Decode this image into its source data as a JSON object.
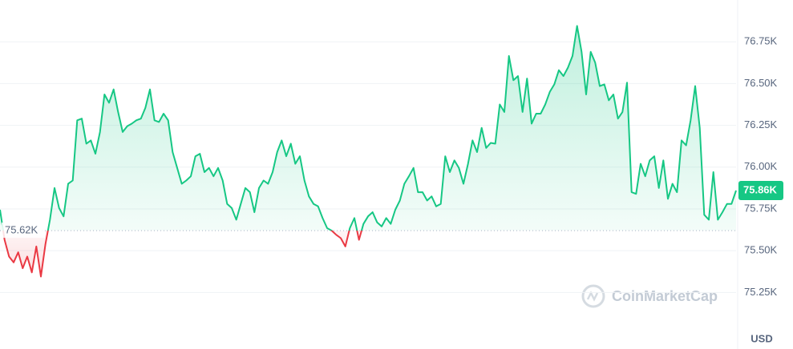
{
  "chart_data": {
    "type": "line",
    "values": [
      75745,
      75565,
      75465,
      75430,
      75490,
      75395,
      75465,
      75370,
      75525,
      75345,
      75540,
      75685,
      75875,
      75755,
      75705,
      75900,
      75920,
      76280,
      76290,
      76140,
      76160,
      76080,
      76210,
      76435,
      76385,
      76465,
      76330,
      76210,
      76245,
      76260,
      76280,
      76290,
      76355,
      76465,
      76280,
      76270,
      76320,
      76280,
      76090,
      75995,
      75900,
      75920,
      75945,
      76065,
      76080,
      75970,
      75995,
      75945,
      75995,
      75920,
      75780,
      75755,
      75685,
      75780,
      75875,
      75850,
      75730,
      75875,
      75920,
      75900,
      75970,
      76090,
      76160,
      76065,
      76140,
      76020,
      76065,
      75920,
      75825,
      75780,
      75765,
      75695,
      75635,
      75620,
      75595,
      75575,
      75525,
      75635,
      75695,
      75565,
      75660,
      75705,
      75730,
      75670,
      75645,
      75695,
      75660,
      75745,
      75800,
      75900,
      75945,
      75995,
      75850,
      75850,
      75800,
      75825,
      75765,
      75780,
      76065,
      75970,
      76040,
      75995,
      75900,
      76020,
      76160,
      76090,
      76235,
      76115,
      76145,
      76140,
      76375,
      76330,
      76665,
      76520,
      76545,
      76330,
      76530,
      76260,
      76320,
      76320,
      76375,
      76450,
      76495,
      76580,
      76545,
      76595,
      76665,
      76845,
      76690,
      76435,
      76690,
      76625,
      76485,
      76495,
      76400,
      76435,
      76290,
      76330,
      76505,
      75850,
      75840,
      76020,
      75945,
      76040,
      76065,
      75875,
      76040,
      75810,
      75900,
      75850,
      76160,
      76130,
      76280,
      76485,
      76235,
      75715,
      75685,
      75970,
      75685,
      75730,
      75780,
      75780,
      75860
    ],
    "ylim": [
      75060,
      77000
    ],
    "yticks": [
      {
        "value": 75250,
        "label": "75.25K"
      },
      {
        "value": 75500,
        "label": "75.50K"
      },
      {
        "value": 75750,
        "label": "75.75K"
      },
      {
        "value": 76000,
        "label": "76.00K"
      },
      {
        "value": 76250,
        "label": "76.25K"
      },
      {
        "value": 76500,
        "label": "76.50K"
      },
      {
        "value": 76750,
        "label": "76.75K"
      }
    ],
    "baseline": {
      "value": 75620,
      "label": "75.62K"
    },
    "current": {
      "value": 75860,
      "label": "75.86K"
    },
    "colors": {
      "up": "#16c784",
      "down": "#ea3943"
    },
    "grid": true,
    "y_unit": "USD",
    "watermark": "CoinMarketCap"
  }
}
